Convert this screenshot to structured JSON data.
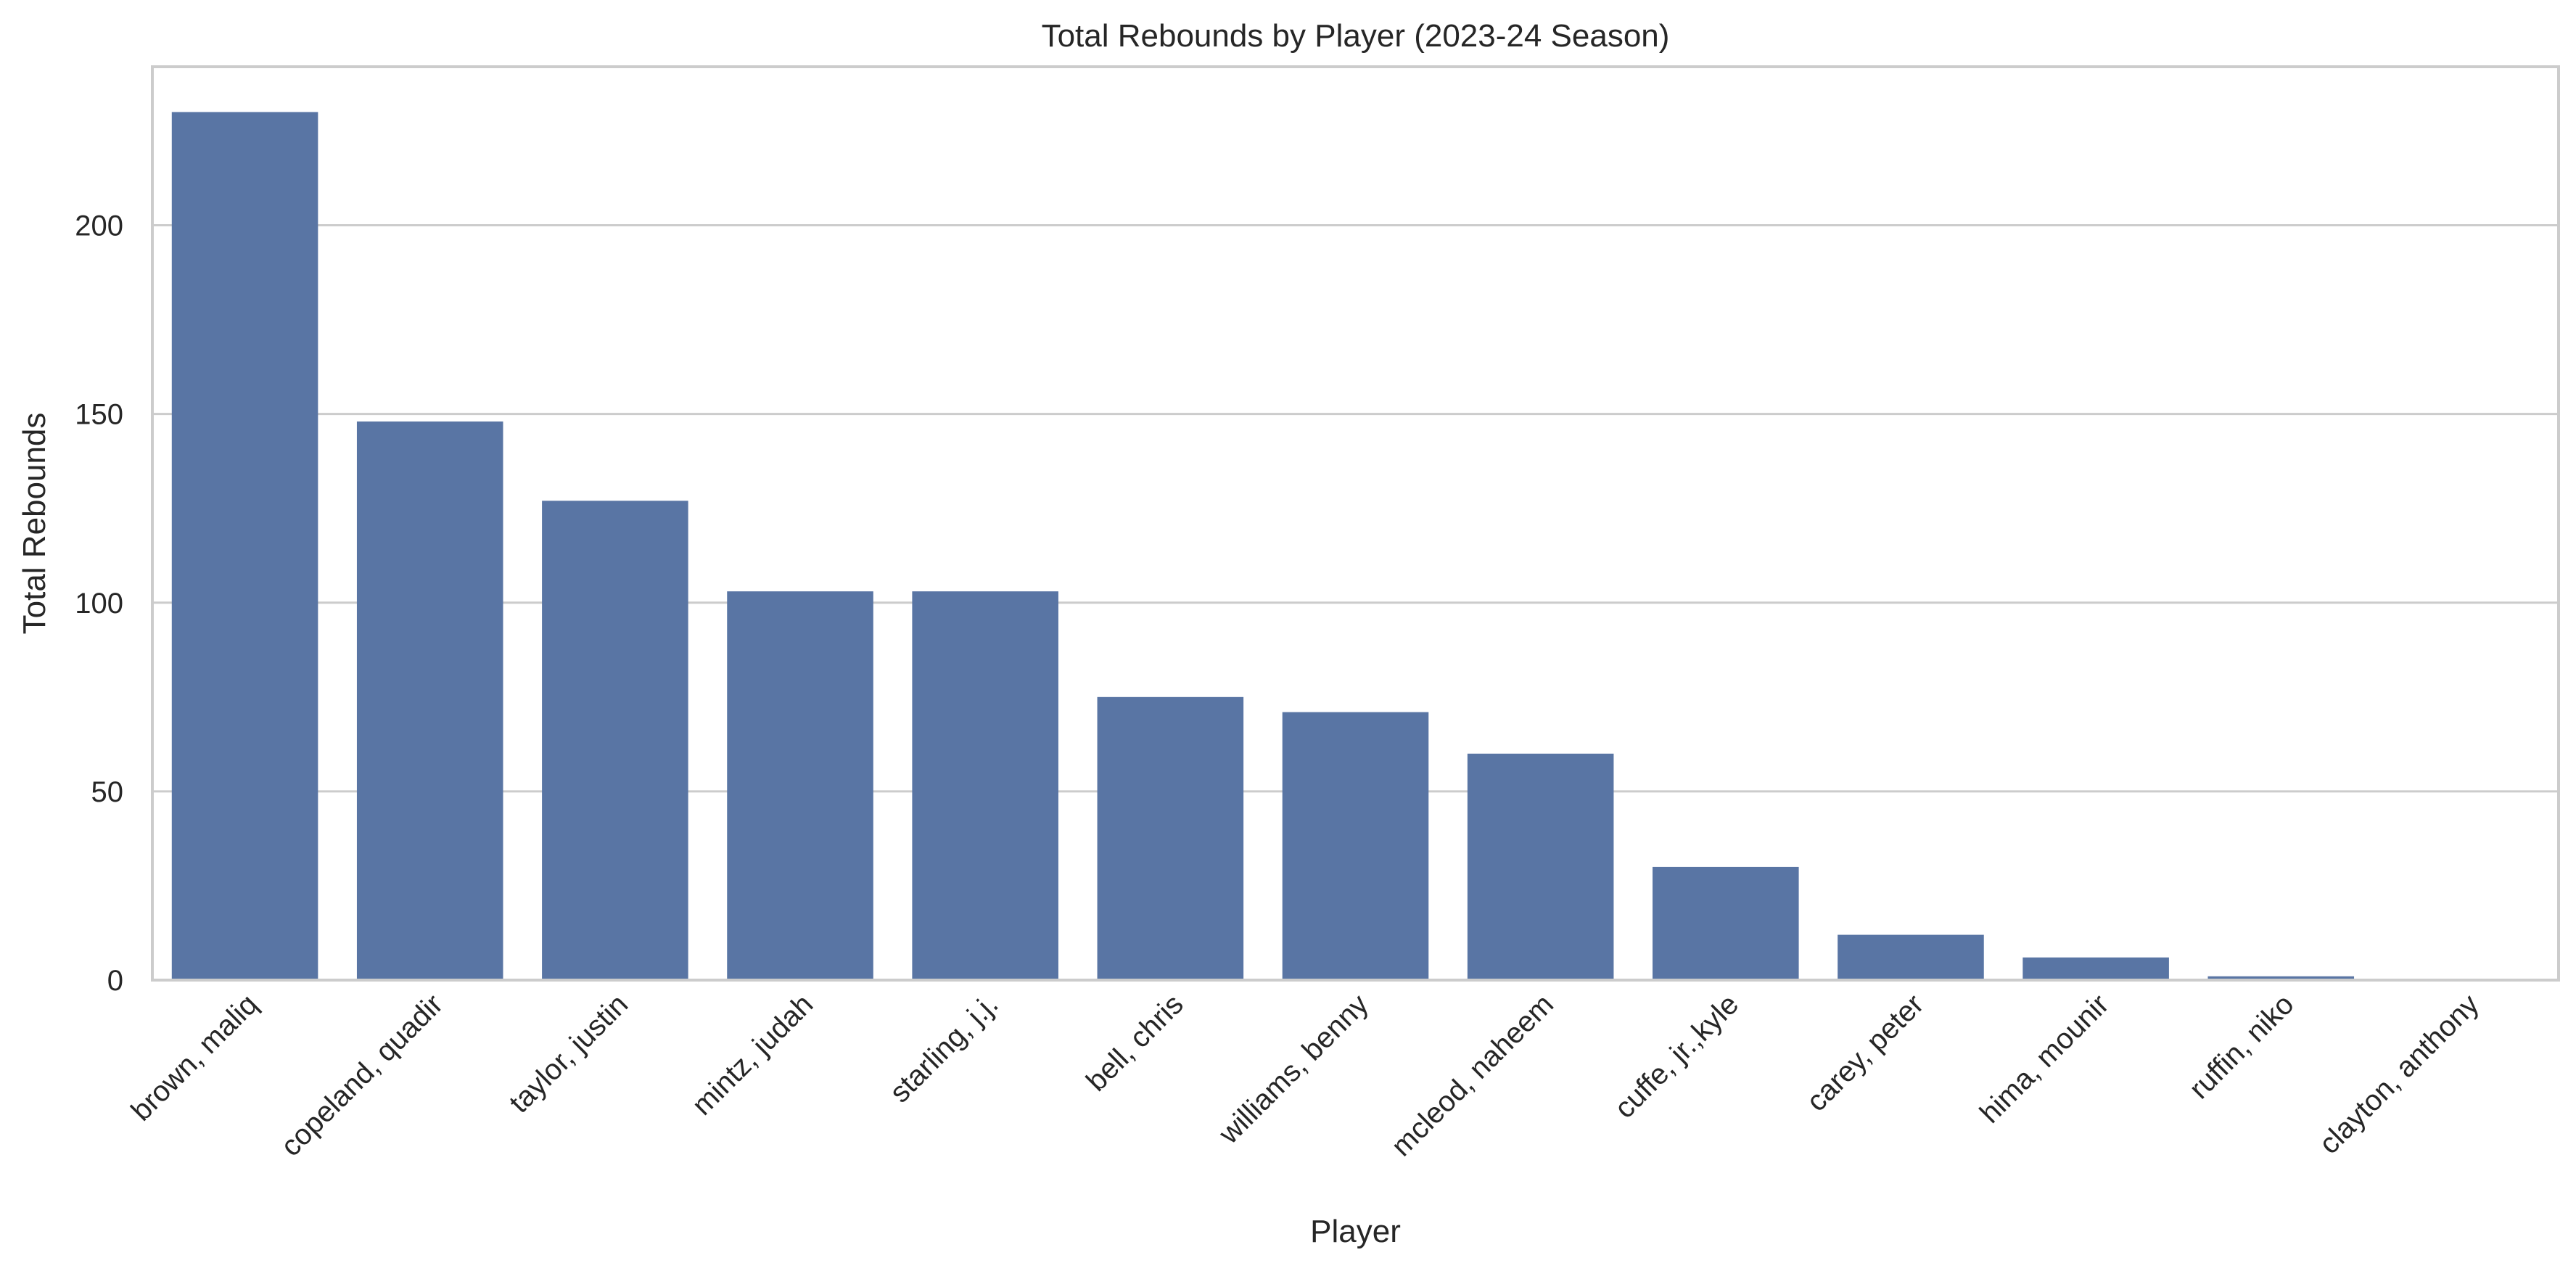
{
  "chart_data": {
    "type": "bar",
    "title": "Total Rebounds by Player (2023-24 Season)",
    "xlabel": "Player",
    "ylabel": "Total Rebounds",
    "categories": [
      "brown, maliq",
      "copeland, quadir",
      "taylor, justin",
      "mintz, judah",
      "starling, j.j.",
      "bell, chris",
      "williams, benny",
      "mcleod, naheem",
      "cuffe, jr.,kyle",
      "carey, peter",
      "hima, mounir",
      "ruffin, niko",
      "clayton, anthony"
    ],
    "values": [
      230,
      148,
      127,
      103,
      103,
      75,
      71,
      60,
      30,
      12,
      6,
      1,
      0
    ],
    "ylim": [
      0,
      242
    ],
    "yticks": [
      0,
      50,
      100,
      150,
      200
    ],
    "grid": "horizontal",
    "bar_color": "#5975a4"
  }
}
